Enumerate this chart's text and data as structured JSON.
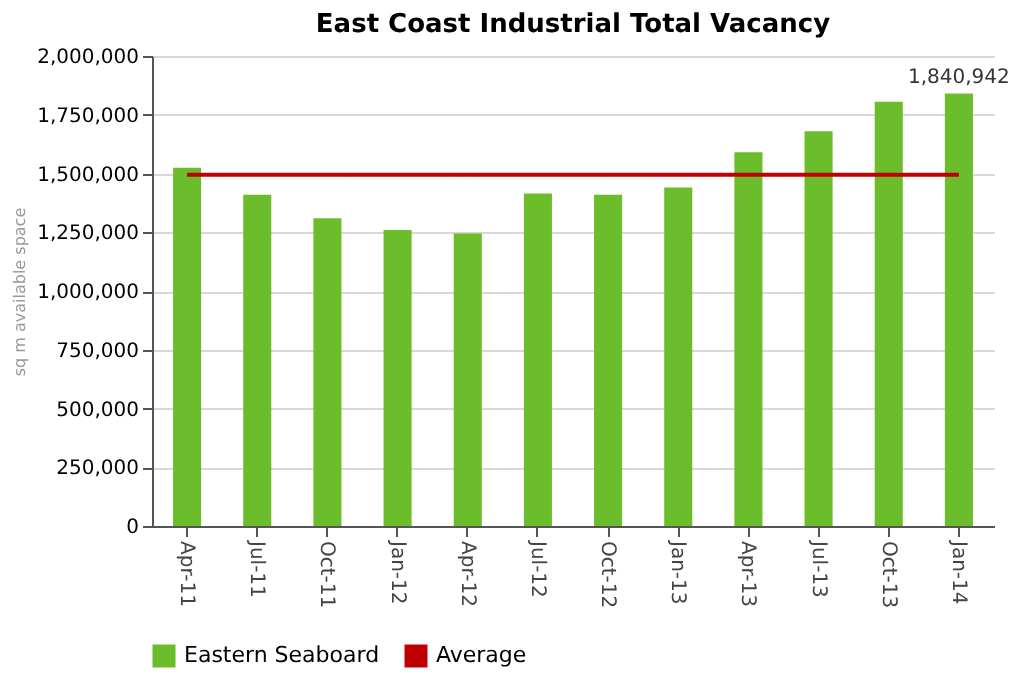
{
  "chart_data": {
    "type": "bar",
    "title": "East Coast Industrial Total Vacancy",
    "ylabel": "sq m available space",
    "categories": [
      "Apr-11",
      "Jul-11",
      "Oct-11",
      "Jan-12",
      "Apr-12",
      "Jul-12",
      "Oct-12",
      "Jan-13",
      "Apr-13",
      "Jul-13",
      "Oct-13",
      "Jan-14"
    ],
    "series": [
      {
        "name": "Eastern Seaboard",
        "color": "#6bbd2b",
        "values": [
          1525000,
          1410000,
          1310000,
          1260000,
          1245000,
          1415000,
          1410000,
          1440000,
          1590000,
          1680000,
          1805000,
          1840942
        ],
        "value_labels": [
          null,
          null,
          null,
          null,
          null,
          null,
          null,
          null,
          null,
          null,
          null,
          "1,840,942"
        ]
      }
    ],
    "ref_lines": [
      {
        "axis": "y",
        "value": 1495000,
        "label": "Average",
        "color": "#c00000"
      }
    ],
    "ylim": [
      0,
      2000000
    ],
    "yticks": [
      0,
      {
        "value": 250000,
        "label": "250,000"
      },
      {
        "value": 500000,
        "label": "500,000"
      },
      {
        "value": 750000,
        "label": "750,000"
      },
      {
        "value": 1000000,
        "label": "1,000,000"
      },
      {
        "value": 1250000,
        "label": "1,250,000"
      },
      {
        "value": 1500000,
        "label": "1,500,000"
      },
      {
        "value": 1750000,
        "label": "1,750,000"
      },
      {
        "value": 2000000,
        "label": "2,000,000"
      }
    ],
    "grid": "y",
    "legend": "bottom"
  }
}
